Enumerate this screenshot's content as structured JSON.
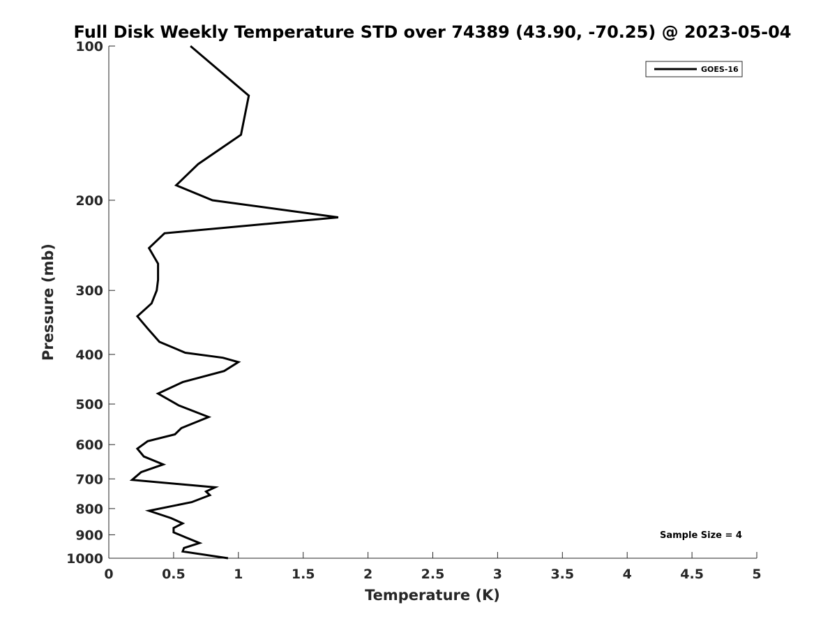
{
  "chart_data": {
    "type": "line",
    "title": "Full Disk Weekly Temperature STD over 74389 (43.90, -70.25) @ 2023-05-04",
    "xlabel": "Temperature (K)",
    "ylabel": "Pressure (mb)",
    "xlim": [
      0,
      5
    ],
    "ylim": [
      100,
      1000
    ],
    "y_scale": "log",
    "y_reversed": true,
    "grid": false,
    "legend_position": "top-right",
    "x_ticks": [
      "0",
      "0.5",
      "1",
      "1.5",
      "2",
      "2.5",
      "3",
      "3.5",
      "4",
      "4.5",
      "5"
    ],
    "y_ticks": [
      "100",
      "200",
      "300",
      "400",
      "500",
      "600",
      "700",
      "800",
      "900",
      "1000"
    ],
    "series": [
      {
        "name": "GOES-16",
        "color": "#000000",
        "points": [
          [
            0.63,
            100
          ],
          [
            1.08,
            125
          ],
          [
            1.02,
            149
          ],
          [
            0.69,
            170
          ],
          [
            0.52,
            187
          ],
          [
            0.8,
            200
          ],
          [
            1.77,
            216
          ],
          [
            0.43,
            232
          ],
          [
            0.31,
            248
          ],
          [
            0.38,
            266
          ],
          [
            0.38,
            286
          ],
          [
            0.37,
            300
          ],
          [
            0.33,
            318
          ],
          [
            0.22,
            337
          ],
          [
            0.3,
            356
          ],
          [
            0.39,
            378
          ],
          [
            0.59,
            397
          ],
          [
            0.88,
            406
          ],
          [
            1.0,
            414
          ],
          [
            0.89,
            431
          ],
          [
            0.57,
            453
          ],
          [
            0.38,
            477
          ],
          [
            0.54,
            503
          ],
          [
            0.77,
            530
          ],
          [
            0.56,
            557
          ],
          [
            0.51,
            573
          ],
          [
            0.3,
            591
          ],
          [
            0.22,
            611
          ],
          [
            0.27,
            633
          ],
          [
            0.42,
            656
          ],
          [
            0.25,
            679
          ],
          [
            0.18,
            703
          ],
          [
            0.82,
            727
          ],
          [
            0.75,
            741
          ],
          [
            0.78,
            753
          ],
          [
            0.64,
            777
          ],
          [
            0.31,
            808
          ],
          [
            0.48,
            835
          ],
          [
            0.57,
            855
          ],
          [
            0.5,
            873
          ],
          [
            0.5,
            890
          ],
          [
            0.59,
            910
          ],
          [
            0.7,
            934
          ],
          [
            0.58,
            955
          ],
          [
            0.57,
            970
          ],
          [
            0.92,
            1000
          ]
        ]
      }
    ],
    "annotations": [
      "Sample Size = 4"
    ]
  }
}
